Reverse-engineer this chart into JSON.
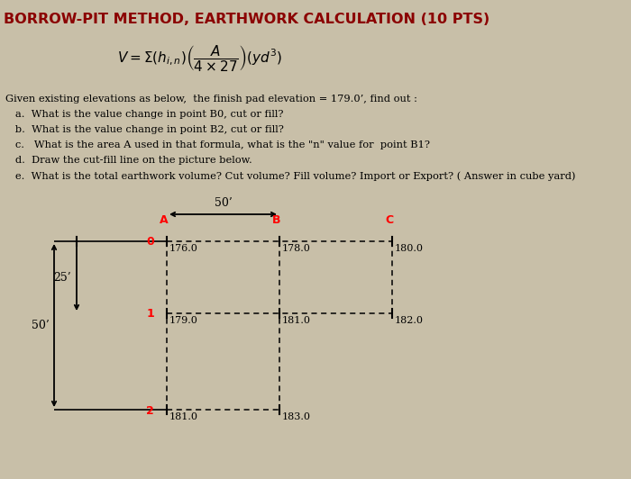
{
  "title": "BORROW-PIT METHOD, EARTHWORK CALCULATION (10 PTS)",
  "title_color": "#8B0000",
  "bg_color": "#c8bfa8",
  "given_lines": [
    "Given existing elevations as below,  the finish pad elevation = 179.0’, find out :",
    "   a.  What is the value change in point B0, cut or fill?",
    "   b.  What is the value change in point B2, cut or fill?",
    "   c.   What is the area A used in that formula, what is the \"n\" value for  point B1?",
    "   d.  Draw the cut-fill line on the picture below.",
    "   e.  What is the total earthwork volume? Cut volume? Fill volume? Import or Export? ( Answer in cube yard)"
  ],
  "col_labels": [
    "A",
    "B",
    "C"
  ],
  "row_labels": [
    "0",
    "1",
    "2"
  ],
  "elevations": [
    [
      176.0,
      178.0,
      180.0
    ],
    [
      179.0,
      181.0,
      182.0
    ],
    [
      181.0,
      183.0,
      null
    ]
  ],
  "dim_horiz": "50’",
  "dim_25": "25’",
  "dim_50v": "50’"
}
